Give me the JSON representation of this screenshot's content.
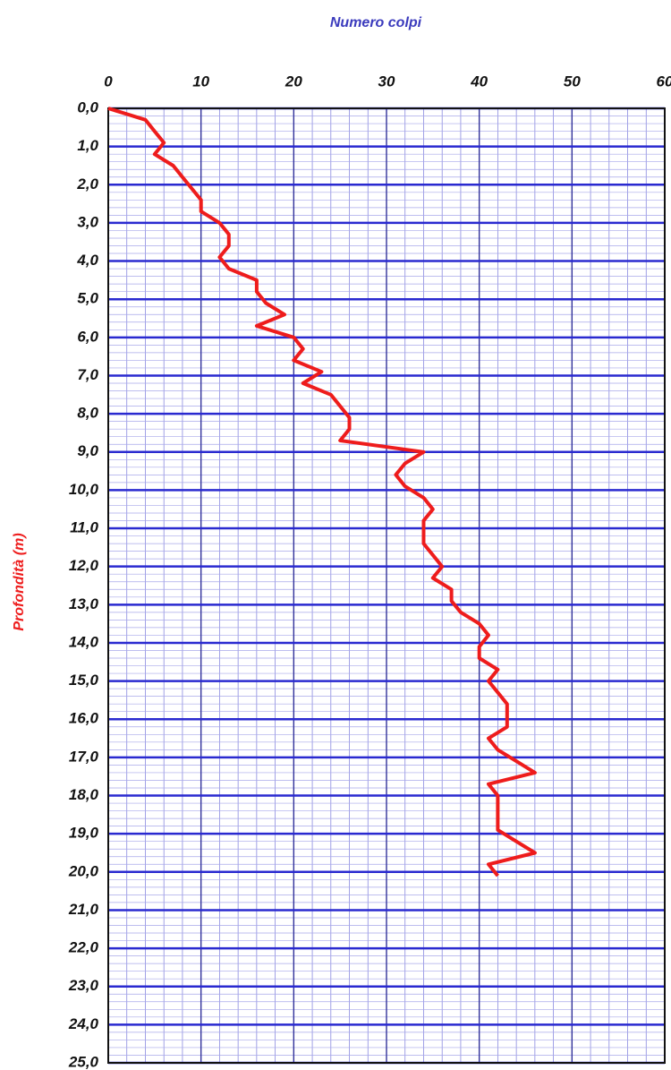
{
  "chart_data": {
    "type": "line",
    "x_label": "Numero colpi",
    "y_label": "Profondità (m)",
    "color": "#ee1c1c",
    "grid": true,
    "y_inverted": true,
    "xlim": [
      0,
      60
    ],
    "xticks": [
      0,
      10,
      20,
      30,
      40,
      50,
      60
    ],
    "ylim": [
      0,
      25
    ],
    "yticks": [
      {
        "value": 0,
        "label": "0,0"
      },
      {
        "value": 1,
        "label": "1,0"
      },
      {
        "value": 2,
        "label": "2,0"
      },
      {
        "value": 3,
        "label": "3,0"
      },
      {
        "value": 4,
        "label": "4,0"
      },
      {
        "value": 5,
        "label": "5,0"
      },
      {
        "value": 6,
        "label": "6,0"
      },
      {
        "value": 7,
        "label": "7,0"
      },
      {
        "value": 8,
        "label": "8,0"
      },
      {
        "value": 9,
        "label": "9,0"
      },
      {
        "value": 10,
        "label": "10,0"
      },
      {
        "value": 11,
        "label": "11,0"
      },
      {
        "value": 12,
        "label": "12,0"
      },
      {
        "value": 13,
        "label": "13,0"
      },
      {
        "value": 14,
        "label": "14,0"
      },
      {
        "value": 15,
        "label": "15,0"
      },
      {
        "value": 16,
        "label": "16,0"
      },
      {
        "value": 17,
        "label": "17,0"
      },
      {
        "value": 18,
        "label": "18,0"
      },
      {
        "value": 19,
        "label": "19,0"
      },
      {
        "value": 20,
        "label": "20,0"
      },
      {
        "value": 21,
        "label": "21,0"
      },
      {
        "value": 22,
        "label": "22,0"
      },
      {
        "value": 23,
        "label": "23,0"
      },
      {
        "value": 24,
        "label": "24,0"
      },
      {
        "value": 25,
        "label": "25,0"
      }
    ],
    "y": [
      0.0,
      0.3,
      0.6,
      0.9,
      1.2,
      1.5,
      1.8,
      2.1,
      2.4,
      2.7,
      3.0,
      3.3,
      3.6,
      3.9,
      4.2,
      4.5,
      4.8,
      5.1,
      5.4,
      5.7,
      6.0,
      6.3,
      6.6,
      6.9,
      7.2,
      7.5,
      7.8,
      8.1,
      8.4,
      8.7,
      9.0,
      9.3,
      9.6,
      9.9,
      10.2,
      10.5,
      10.8,
      11.1,
      11.4,
      11.7,
      12.0,
      12.3,
      12.6,
      12.9,
      13.2,
      13.5,
      13.8,
      14.1,
      14.4,
      14.7,
      15.0,
      15.3,
      15.6,
      15.9,
      16.2,
      16.5,
      16.8,
      17.1,
      17.4,
      17.7,
      18.0,
      18.3,
      18.6,
      18.9,
      19.2,
      19.5,
      19.8,
      20.1
    ],
    "x": [
      0,
      4,
      5,
      6,
      5,
      7,
      8,
      9,
      10,
      10,
      12,
      13,
      13,
      12,
      13,
      16,
      16,
      17,
      19,
      16,
      20,
      21,
      20,
      23,
      21,
      24,
      25,
      26,
      26,
      25,
      34,
      32,
      31,
      32,
      34,
      35,
      34,
      34,
      34,
      35,
      36,
      35,
      37,
      37,
      38,
      40,
      41,
      40,
      40,
      42,
      41,
      42,
      43,
      43,
      43,
      41,
      42,
      44,
      46,
      41,
      42,
      42,
      42,
      42,
      44,
      46,
      41,
      42
    ]
  }
}
